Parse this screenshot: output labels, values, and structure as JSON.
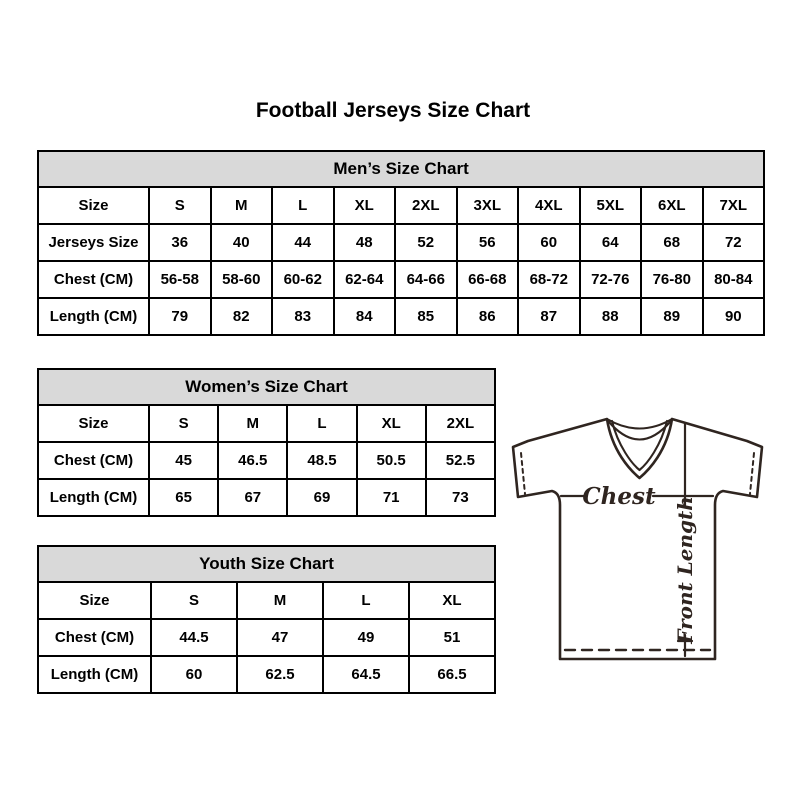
{
  "page_title": "Football Jerseys Size Chart",
  "tables": {
    "men": {
      "title": "Men’s Size Chart",
      "rows": [
        [
          "Size",
          "S",
          "M",
          "L",
          "XL",
          "2XL",
          "3XL",
          "4XL",
          "5XL",
          "6XL",
          "7XL"
        ],
        [
          "Jerseys Size",
          "36",
          "40",
          "44",
          "48",
          "52",
          "56",
          "60",
          "64",
          "68",
          "72"
        ],
        [
          "Chest (CM)",
          "56-58",
          "58-60",
          "60-62",
          "62-64",
          "64-66",
          "66-68",
          "68-72",
          "72-76",
          "76-80",
          "80-84"
        ],
        [
          "Length (CM)",
          "79",
          "82",
          "83",
          "84",
          "85",
          "86",
          "87",
          "88",
          "89",
          "90"
        ]
      ]
    },
    "women": {
      "title": "Women’s Size Chart",
      "rows": [
        [
          "Size",
          "S",
          "M",
          "L",
          "XL",
          "2XL"
        ],
        [
          "Chest (CM)",
          "45",
          "46.5",
          "48.5",
          "50.5",
          "52.5"
        ],
        [
          "Length (CM)",
          "65",
          "67",
          "69",
          "71",
          "73"
        ]
      ]
    },
    "youth": {
      "title": "Youth Size Chart",
      "rows": [
        [
          "Size",
          "S",
          "M",
          "L",
          "XL"
        ],
        [
          "Chest (CM)",
          "44.5",
          "47",
          "49",
          "51"
        ],
        [
          "Length (CM)",
          "60",
          "62.5",
          "64.5",
          "66.5"
        ]
      ]
    }
  },
  "diagram": {
    "chest_label": "Chest",
    "front_length_label": "Front Length"
  },
  "colors": {
    "header_bg": "#d9d9d9",
    "table_border": "#000000",
    "diagram_stroke": "#2f2520"
  }
}
